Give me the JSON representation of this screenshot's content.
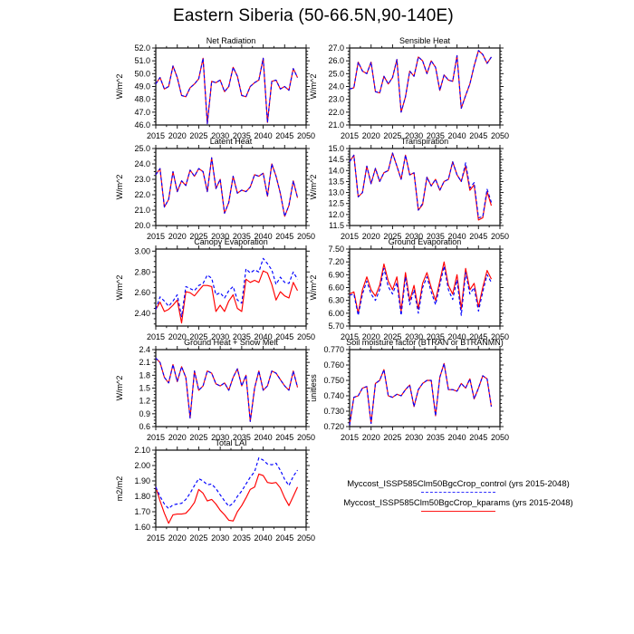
{
  "title": "Eastern Siberia (50-66.5N,90-140E)",
  "legend": {
    "entries": [
      {
        "name": "control",
        "label": "Myccost_ISSP585Clm50BgcCrop_control (yrs 2015-2048)",
        "color": "#0000ff",
        "line_style": "dashed"
      },
      {
        "name": "kparams",
        "label": "Myccost_ISSP585Clm50BgcCrop_kparams (yrs 2015-2048)",
        "color": "#ff0000",
        "line_style": "solid"
      }
    ]
  },
  "colors": {
    "frame": "#1a1a1a",
    "control_line": "#0000ff",
    "kparams_line": "#ff0000",
    "background": "#ffffff"
  },
  "chart_data": [
    {
      "type": "line",
      "title": "Net Radiation",
      "ylabel": "W/m^2",
      "grid": {
        "row": 0,
        "col": 0
      },
      "xlim": [
        2015,
        2050
      ],
      "xticks": [
        2015,
        2020,
        2025,
        2030,
        2035,
        2040,
        2045,
        2050
      ],
      "ylim": [
        46.0,
        52.0
      ],
      "yticks": [
        46.0,
        47.0,
        48.0,
        49.0,
        50.0,
        51.0,
        52.0
      ],
      "ytick_labels": [
        "46.0",
        "47.0",
        "48.0",
        "49.0",
        "50.0",
        "51.0",
        "52.0"
      ],
      "x_start": 2015,
      "shared_values": [
        49.2,
        49.7,
        48.8,
        49.0,
        50.6,
        49.7,
        48.3,
        48.2,
        48.9,
        49.2,
        49.6,
        51.2,
        46.1,
        49.4,
        49.3,
        49.5,
        48.6,
        49.0,
        50.5,
        49.8,
        48.3,
        48.2,
        49.0,
        49.3,
        49.5,
        51.2,
        46.2,
        49.4,
        49.5,
        48.8,
        49.0,
        48.7,
        50.4,
        49.7
      ],
      "series": [
        {
          "name": "kparams",
          "color": "#ff0000",
          "dashed": false
        },
        {
          "name": "control",
          "color": "#0000ff",
          "dashed": true
        }
      ]
    },
    {
      "type": "line",
      "title": "Sensible Heat",
      "ylabel": "W/m^2",
      "grid": {
        "row": 0,
        "col": 1
      },
      "xlim": [
        2015,
        2050
      ],
      "xticks": [
        2015,
        2020,
        2025,
        2030,
        2035,
        2040,
        2045,
        2050
      ],
      "ylim": [
        21.0,
        27.0
      ],
      "yticks": [
        21.0,
        22.0,
        23.0,
        24.0,
        25.0,
        26.0,
        27.0
      ],
      "ytick_labels": [
        "21.0",
        "22.0",
        "23.0",
        "24.0",
        "25.0",
        "26.0",
        "27.0"
      ],
      "x_start": 2015,
      "shared_values": [
        23.8,
        23.9,
        25.9,
        25.2,
        25.0,
        25.9,
        23.6,
        23.5,
        24.8,
        24.2,
        24.7,
        26.1,
        22.0,
        23.2,
        25.2,
        24.8,
        26.3,
        26.0,
        25.0,
        26.0,
        25.5,
        23.7,
        24.9,
        24.5,
        24.4,
        26.4,
        22.3,
        23.3,
        24.2,
        25.6,
        26.8,
        26.5,
        25.8,
        26.3
      ],
      "series": [
        {
          "name": "kparams",
          "color": "#ff0000",
          "dashed": false
        },
        {
          "name": "control",
          "color": "#0000ff",
          "dashed": true
        }
      ]
    },
    {
      "type": "line",
      "title": "Latent Heat",
      "ylabel": "W/m^2",
      "grid": {
        "row": 1,
        "col": 0
      },
      "xlim": [
        2015,
        2050
      ],
      "xticks": [
        2015,
        2020,
        2025,
        2030,
        2035,
        2040,
        2045,
        2050
      ],
      "ylim": [
        20.0,
        25.0
      ],
      "yticks": [
        20.0,
        21.0,
        22.0,
        23.0,
        24.0,
        25.0
      ],
      "ytick_labels": [
        "20.0",
        "21.0",
        "22.0",
        "23.0",
        "24.0",
        "25.0"
      ],
      "x_start": 2015,
      "shared_values": [
        23.3,
        23.7,
        21.2,
        21.7,
        23.5,
        22.2,
        22.9,
        22.6,
        23.6,
        23.2,
        23.7,
        23.5,
        22.2,
        24.4,
        22.4,
        23.0,
        20.8,
        21.5,
        23.2,
        22.1,
        22.3,
        22.2,
        22.5,
        23.3,
        23.2,
        23.4,
        21.9,
        24.0,
        23.2,
        22.1,
        20.6,
        21.3,
        22.9,
        21.8
      ],
      "series": [
        {
          "name": "kparams",
          "color": "#ff0000",
          "dashed": false
        },
        {
          "name": "control",
          "color": "#0000ff",
          "dashed": true
        }
      ]
    },
    {
      "type": "line",
      "title": "Transpiration",
      "ylabel": "W/m^2",
      "grid": {
        "row": 1,
        "col": 1
      },
      "xlim": [
        2015,
        2050
      ],
      "xticks": [
        2015,
        2020,
        2025,
        2030,
        2035,
        2040,
        2045,
        2050
      ],
      "ylim": [
        11.5,
        15.0
      ],
      "yticks": [
        11.5,
        12.0,
        12.5,
        13.0,
        13.5,
        14.0,
        14.5,
        15.0
      ],
      "ytick_labels": [
        "11.5",
        "12.0",
        "12.5",
        "13.0",
        "13.5",
        "14.0",
        "14.5",
        "15.0"
      ],
      "x_start": 2015,
      "series": [
        {
          "name": "kparams",
          "color": "#ff0000",
          "dashed": false,
          "values": [
            14.4,
            14.7,
            12.8,
            13.0,
            14.2,
            13.4,
            14.1,
            13.5,
            13.9,
            14.0,
            14.8,
            14.2,
            13.6,
            14.7,
            13.8,
            13.9,
            12.2,
            12.45,
            13.7,
            13.3,
            13.6,
            13.1,
            13.5,
            13.6,
            14.4,
            13.8,
            13.5,
            14.2,
            13.1,
            13.35,
            11.75,
            11.85,
            13.05,
            12.4
          ]
        },
        {
          "name": "control",
          "color": "#0000ff",
          "dashed": true,
          "values": [
            14.4,
            14.7,
            12.8,
            13.0,
            14.2,
            13.4,
            14.1,
            13.5,
            13.9,
            14.0,
            14.8,
            14.2,
            13.6,
            14.7,
            13.8,
            13.9,
            12.2,
            12.5,
            13.7,
            13.3,
            13.6,
            13.1,
            13.5,
            13.6,
            14.4,
            13.8,
            13.5,
            14.35,
            13.2,
            13.45,
            11.85,
            11.9,
            13.15,
            12.55
          ]
        }
      ]
    },
    {
      "type": "line",
      "title": "Canopy Evaporation",
      "ylabel": "W/m^2",
      "grid": {
        "row": 2,
        "col": 0
      },
      "xlim": [
        2015,
        2050
      ],
      "xticks": [
        2015,
        2020,
        2025,
        2030,
        2035,
        2040,
        2045,
        2050
      ],
      "ylim": [
        2.28,
        3.02
      ],
      "yticks": [
        2.4,
        2.6,
        2.8,
        3.0
      ],
      "ytick_labels": [
        "2.40",
        "2.60",
        "2.80",
        "3.00"
      ],
      "x_start": 2015,
      "series": [
        {
          "name": "kparams",
          "color": "#ff0000",
          "dashed": false,
          "values": [
            2.44,
            2.51,
            2.42,
            2.44,
            2.48,
            2.53,
            2.31,
            2.61,
            2.6,
            2.57,
            2.62,
            2.67,
            2.67,
            2.66,
            2.42,
            2.48,
            2.42,
            2.52,
            2.58,
            2.45,
            2.42,
            2.73,
            2.7,
            2.72,
            2.7,
            2.81,
            2.79,
            2.68,
            2.53,
            2.61,
            2.57,
            2.55,
            2.7,
            2.62
          ]
        },
        {
          "name": "control",
          "color": "#0000ff",
          "dashed": true,
          "values": [
            2.44,
            2.56,
            2.52,
            2.47,
            2.52,
            2.58,
            2.37,
            2.66,
            2.64,
            2.62,
            2.67,
            2.69,
            2.77,
            2.74,
            2.58,
            2.6,
            2.55,
            2.62,
            2.66,
            2.53,
            2.5,
            2.83,
            2.79,
            2.82,
            2.8,
            2.93,
            2.88,
            2.82,
            2.68,
            2.75,
            2.7,
            2.69,
            2.8,
            2.73
          ]
        }
      ]
    },
    {
      "type": "line",
      "title": "Ground Evaporation",
      "ylabel": "W/m^2",
      "grid": {
        "row": 2,
        "col": 1
      },
      "xlim": [
        2015,
        2050
      ],
      "xticks": [
        2015,
        2020,
        2025,
        2030,
        2035,
        2040,
        2045,
        2050
      ],
      "ylim": [
        5.7,
        7.5
      ],
      "yticks": [
        5.7,
        6.0,
        6.3,
        6.6,
        6.9,
        7.2,
        7.5
      ],
      "ytick_labels": [
        "5.70",
        "6.00",
        "6.30",
        "6.60",
        "6.90",
        "7.20",
        "7.50"
      ],
      "x_start": 2015,
      "series": [
        {
          "name": "kparams",
          "color": "#ff0000",
          "dashed": false,
          "values": [
            6.45,
            6.5,
            6.0,
            6.55,
            6.85,
            6.55,
            6.4,
            6.65,
            7.15,
            6.75,
            6.55,
            6.85,
            6.05,
            6.95,
            6.3,
            6.65,
            6.1,
            6.7,
            6.95,
            6.6,
            6.3,
            6.75,
            7.2,
            6.65,
            6.45,
            6.9,
            6.1,
            7.05,
            6.55,
            6.7,
            6.15,
            6.6,
            7.0,
            6.8
          ]
        },
        {
          "name": "control",
          "color": "#0000ff",
          "dashed": true,
          "values": [
            6.42,
            6.45,
            5.95,
            6.45,
            6.75,
            6.45,
            6.3,
            6.55,
            7.05,
            6.62,
            6.45,
            6.72,
            5.95,
            6.85,
            6.2,
            6.55,
            6.0,
            6.6,
            6.85,
            6.5,
            6.2,
            6.65,
            7.1,
            6.55,
            6.32,
            6.78,
            5.95,
            6.95,
            6.45,
            6.6,
            6.05,
            6.5,
            6.9,
            6.72
          ]
        }
      ]
    },
    {
      "type": "line",
      "title": "Ground Heat + Snow Melt",
      "ylabel": "W/m^2",
      "grid": {
        "row": 3,
        "col": 0
      },
      "xlim": [
        2015,
        2050
      ],
      "xticks": [
        2015,
        2020,
        2025,
        2030,
        2035,
        2040,
        2045,
        2050
      ],
      "ylim": [
        0.6,
        2.4
      ],
      "yticks": [
        0.6,
        0.9,
        1.2,
        1.5,
        1.8,
        2.1,
        2.4
      ],
      "ytick_labels": [
        "0.6",
        "0.9",
        "1.2",
        "1.5",
        "1.8",
        "2.1",
        "2.4"
      ],
      "x_start": 2015,
      "shared_values": [
        2.2,
        2.1,
        1.75,
        1.62,
        2.05,
        1.65,
        2.0,
        1.75,
        0.8,
        1.9,
        1.45,
        1.55,
        1.9,
        1.85,
        1.6,
        1.55,
        1.62,
        1.45,
        1.75,
        1.95,
        1.55,
        1.8,
        0.72,
        1.5,
        1.9,
        1.45,
        1.55,
        1.9,
        1.85,
        1.7,
        1.55,
        1.45,
        1.9,
        1.52
      ],
      "series": [
        {
          "name": "kparams",
          "color": "#ff0000",
          "dashed": false
        },
        {
          "name": "control",
          "color": "#0000ff",
          "dashed": true
        }
      ]
    },
    {
      "type": "line",
      "title": "Soil moisture factor (BTRAN or BTRANMN)",
      "ylabel": "unitless",
      "grid": {
        "row": 3,
        "col": 1
      },
      "xlim": [
        2015,
        2050
      ],
      "xticks": [
        2015,
        2020,
        2025,
        2030,
        2035,
        2040,
        2045,
        2050
      ],
      "ylim": [
        0.72,
        0.77
      ],
      "yticks": [
        0.72,
        0.73,
        0.74,
        0.75,
        0.76,
        0.77
      ],
      "ytick_labels": [
        "0.720",
        "0.730",
        "0.740",
        "0.750",
        "0.760",
        "0.770"
      ],
      "x_start": 2015,
      "shared_values": [
        0.721,
        0.739,
        0.74,
        0.745,
        0.746,
        0.722,
        0.748,
        0.75,
        0.757,
        0.74,
        0.739,
        0.741,
        0.74,
        0.744,
        0.747,
        0.733,
        0.744,
        0.748,
        0.75,
        0.75,
        0.727,
        0.752,
        0.761,
        0.744,
        0.744,
        0.743,
        0.748,
        0.745,
        0.751,
        0.738,
        0.745,
        0.753,
        0.751,
        0.733
      ],
      "series": [
        {
          "name": "kparams",
          "color": "#ff0000",
          "dashed": false
        },
        {
          "name": "control",
          "color": "#0000ff",
          "dashed": true
        }
      ]
    },
    {
      "type": "line",
      "title": "Total LAI",
      "ylabel": "m2/m2",
      "grid": {
        "row": 4,
        "col": 0
      },
      "xlim": [
        2015,
        2050
      ],
      "xticks": [
        2015,
        2020,
        2025,
        2030,
        2035,
        2040,
        2045,
        2050
      ],
      "ylim": [
        1.6,
        2.1
      ],
      "yticks": [
        1.6,
        1.7,
        1.8,
        1.9,
        2.0,
        2.1
      ],
      "ytick_labels": [
        "1.60",
        "1.70",
        "1.80",
        "1.90",
        "2.00",
        "2.10"
      ],
      "x_start": 2015,
      "series": [
        {
          "name": "kparams",
          "color": "#ff0000",
          "dashed": false,
          "values": [
            1.86,
            1.77,
            1.69,
            1.625,
            1.68,
            1.685,
            1.685,
            1.69,
            1.72,
            1.76,
            1.845,
            1.82,
            1.77,
            1.78,
            1.75,
            1.71,
            1.68,
            1.645,
            1.64,
            1.7,
            1.74,
            1.79,
            1.845,
            1.86,
            1.945,
            1.935,
            1.89,
            1.885,
            1.89,
            1.855,
            1.79,
            1.74,
            1.8,
            1.86
          ]
        },
        {
          "name": "control",
          "color": "#0000ff",
          "dashed": true,
          "values": [
            1.86,
            1.8,
            1.75,
            1.72,
            1.745,
            1.75,
            1.755,
            1.78,
            1.82,
            1.87,
            1.915,
            1.9,
            1.875,
            1.88,
            1.85,
            1.81,
            1.77,
            1.735,
            1.755,
            1.8,
            1.835,
            1.88,
            1.925,
            1.96,
            2.05,
            2.035,
            2.01,
            2.005,
            2.015,
            1.97,
            1.91,
            1.87,
            1.93,
            1.97
          ]
        }
      ]
    }
  ]
}
